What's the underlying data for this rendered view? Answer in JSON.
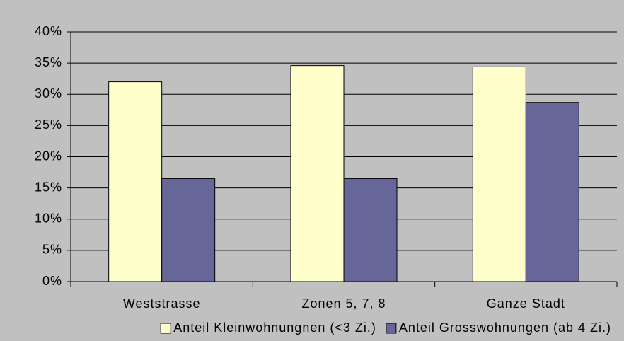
{
  "chart_data": {
    "type": "bar",
    "categories": [
      "Weststrasse",
      "Zonen 5, 7, 8",
      "Ganze Stadt"
    ],
    "series": [
      {
        "name": "Anteil Kleinwohnungnen (<3 Zi.)",
        "color": "#ffffcc",
        "values": [
          32,
          34.6,
          34.4
        ]
      },
      {
        "name": "Anteil Grosswohnungen (ab 4 Zi.)",
        "color": "#666699",
        "values": [
          16.5,
          16.5,
          28.7
        ]
      }
    ],
    "ylim": [
      0,
      40
    ],
    "yticks": [
      {
        "value": 0,
        "label": "0%"
      },
      {
        "value": 5,
        "label": "5%"
      },
      {
        "value": 10,
        "label": "10%"
      },
      {
        "value": 15,
        "label": "15%"
      },
      {
        "value": 20,
        "label": "20%"
      },
      {
        "value": 25,
        "label": "25%"
      },
      {
        "value": 30,
        "label": "30%"
      },
      {
        "value": 35,
        "label": "35%"
      },
      {
        "value": 40,
        "label": "40%"
      }
    ],
    "grid": true,
    "legend": "bottom"
  }
}
